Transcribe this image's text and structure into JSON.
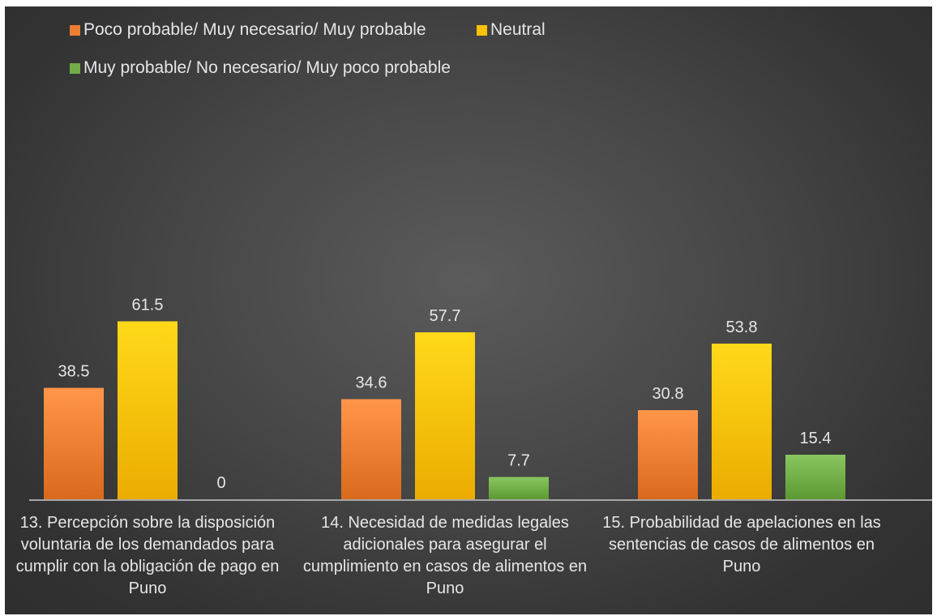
{
  "chart_data": {
    "type": "bar",
    "categories": [
      "13. Percepción sobre la disposición voluntaria de los demandados para cumplir con la obligación de pago en Puno",
      "14. Necesidad de medidas legales adicionales para asegurar el cumplimiento en casos de alimentos en Puno",
      "15. Probabilidad de apelaciones en las sentencias de casos de alimentos en Puno"
    ],
    "series": [
      {
        "name": "Poco probable/ Muy necesario/ Muy probable",
        "values": [
          38.5,
          34.6,
          30.8
        ],
        "color": "#ED7D31"
      },
      {
        "name": "Neutral",
        "values": [
          61.5,
          57.7,
          53.8
        ],
        "color": "#FFC000"
      },
      {
        "name": "Muy probable/ No necesario/ Muy poco probable",
        "values": [
          0,
          7.7,
          15.4
        ],
        "color": "#70AD47"
      }
    ],
    "ylim": [
      0,
      70
    ],
    "legend_position": "top-left",
    "grid": false,
    "data_labels": true
  }
}
